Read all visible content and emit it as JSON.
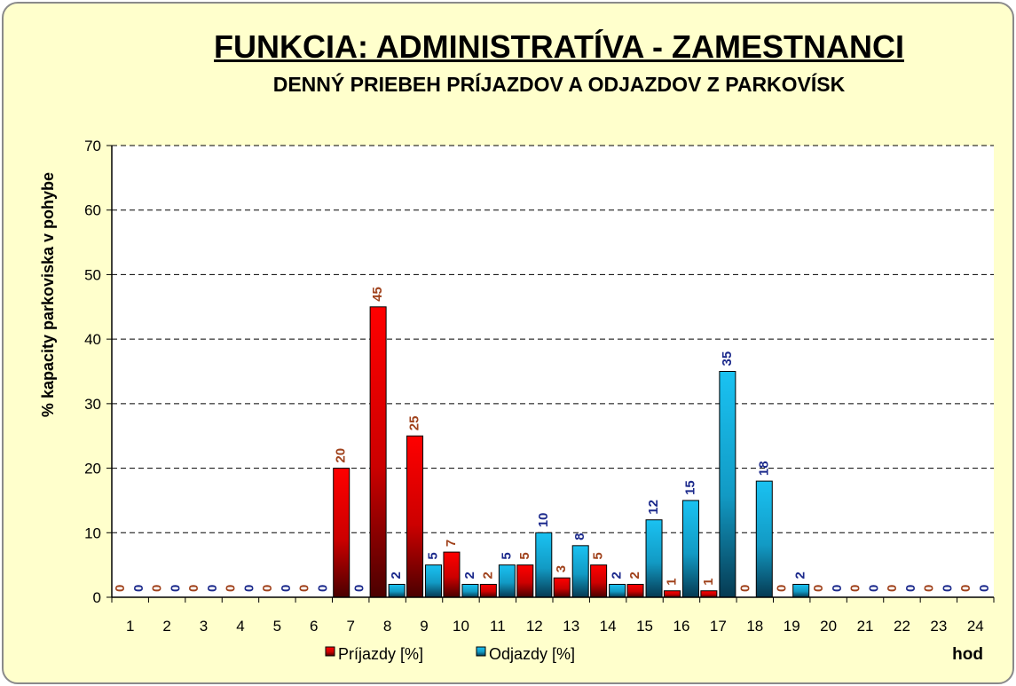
{
  "chart_data": {
    "type": "bar",
    "title": "FUNKCIA: ADMINISTRATÍVA - ZAMESTNANCI",
    "subtitle": "DENNÝ PRIEBEH PRÍJAZDOV A ODJAZDOV Z PARKOVÍSK",
    "ylabel": "% kapacity parkoviska v pohybe",
    "xlabel": "hod",
    "ylim": [
      0,
      70
    ],
    "yticks": [
      0,
      10,
      20,
      30,
      40,
      50,
      60,
      70
    ],
    "grid": "dashed horizontal",
    "legend_position": "bottom",
    "categories": [
      "1",
      "2",
      "3",
      "4",
      "5",
      "6",
      "7",
      "8",
      "9",
      "10",
      "11",
      "12",
      "13",
      "14",
      "15",
      "16",
      "17",
      "18",
      "19",
      "20",
      "21",
      "22",
      "23",
      "24"
    ],
    "series": [
      {
        "name": "Príjazdy [%]",
        "color": "#e00000",
        "label_color": "#a0421c",
        "values": [
          0,
          0,
          0,
          0,
          0,
          0,
          20,
          45,
          25,
          7,
          2,
          5,
          3,
          5,
          2,
          1,
          1,
          0,
          0,
          0,
          0,
          0,
          0,
          0
        ]
      },
      {
        "name": "Odjazdy [%]",
        "color": "#1ab8e8",
        "label_color": "#1c2a8c",
        "values": [
          0,
          0,
          0,
          0,
          0,
          0,
          0,
          2,
          5,
          2,
          5,
          10,
          8,
          2,
          12,
          15,
          35,
          18,
          2,
          0,
          0,
          0,
          0,
          0
        ]
      }
    ]
  }
}
